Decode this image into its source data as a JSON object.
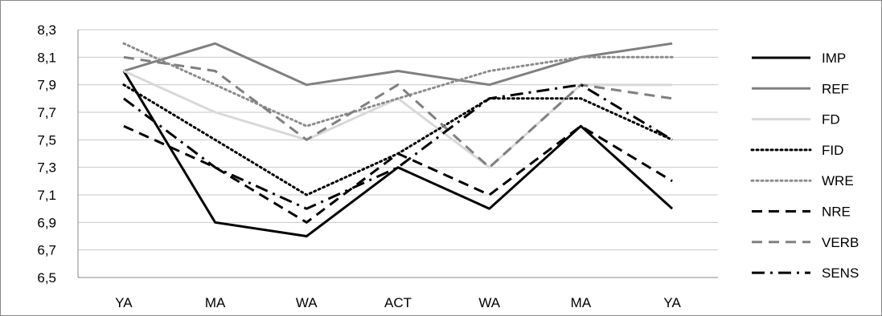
{
  "chart_data": {
    "type": "line",
    "categories": [
      "YA",
      "MA",
      "WA",
      "ACT",
      "WA",
      "MA",
      "YA"
    ],
    "ylim": [
      6.5,
      8.3
    ],
    "yticks": [
      "8,3",
      "8,1",
      "7,9",
      "7,7",
      "7,5",
      "7,3",
      "7,1",
      "6,9",
      "6,7",
      "6,5"
    ],
    "ytick_values": [
      8.3,
      8.1,
      7.9,
      7.7,
      7.5,
      7.3,
      7.1,
      6.9,
      6.7,
      6.5
    ],
    "grid": "horizontal",
    "legend_position": "right",
    "series": [
      {
        "name": "IMP",
        "values": [
          8.0,
          6.9,
          6.8,
          7.3,
          7.0,
          7.6,
          7.0
        ],
        "color": "#000000",
        "dash": "solid"
      },
      {
        "name": "REF",
        "values": [
          8.0,
          8.2,
          7.9,
          8.0,
          7.9,
          8.1,
          8.2
        ],
        "color": "#808080",
        "dash": "solid"
      },
      {
        "name": "FD",
        "values": [
          8.0,
          7.7,
          7.5,
          7.8,
          7.3,
          7.9,
          7.9
        ],
        "color": "#d9d9d9",
        "dash": "solid"
      },
      {
        "name": "FID",
        "values": [
          7.9,
          7.5,
          7.1,
          7.4,
          7.8,
          7.8,
          7.5
        ],
        "color": "#000000",
        "dash": "dotted"
      },
      {
        "name": "WRE",
        "values": [
          8.2,
          7.9,
          7.6,
          7.8,
          8.0,
          8.1,
          8.1
        ],
        "color": "#8c8c8c",
        "dash": "dotted"
      },
      {
        "name": "NRE",
        "values": [
          7.6,
          7.3,
          6.9,
          7.4,
          7.1,
          7.6,
          7.2
        ],
        "color": "#000000",
        "dash": "dashed"
      },
      {
        "name": "VERB",
        "values": [
          8.1,
          8.0,
          7.5,
          7.9,
          7.3,
          7.9,
          7.8
        ],
        "color": "#808080",
        "dash": "dashed"
      },
      {
        "name": "SENS",
        "values": [
          7.8,
          7.3,
          7.0,
          7.3,
          7.8,
          7.9,
          7.5
        ],
        "color": "#000000",
        "dash": "dashdot"
      }
    ]
  }
}
